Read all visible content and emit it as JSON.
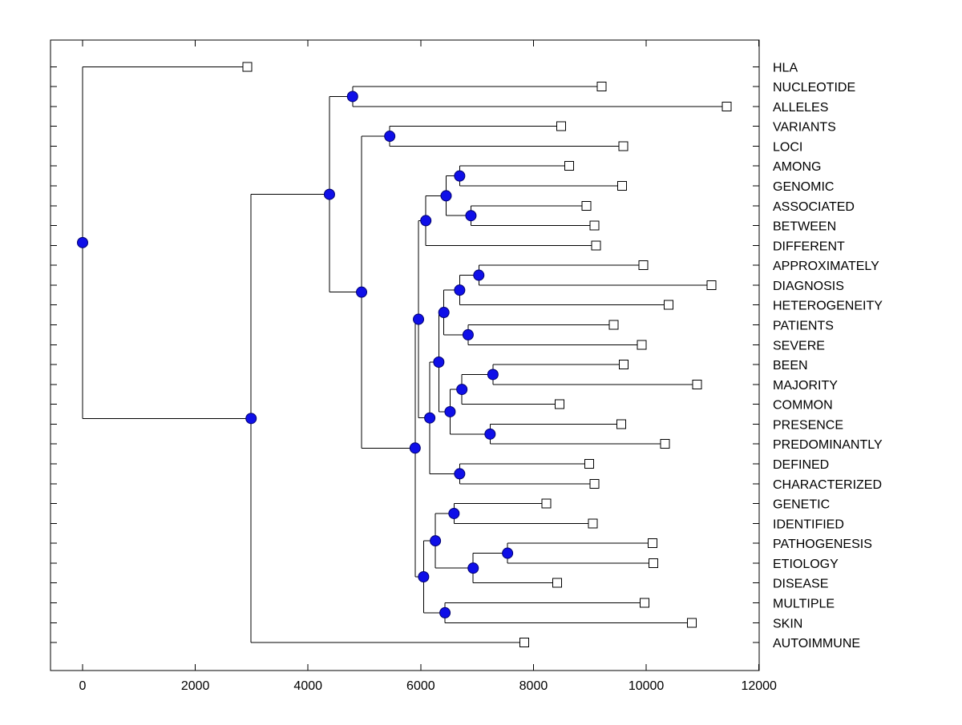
{
  "figure": {
    "background": "#ffffff",
    "kind": "dendrogram-plot"
  },
  "styles": {
    "line_color": "#000000",
    "node_fill": "#0f0fe8",
    "node_edge": "#000070",
    "leaf_marker_fill": "#ffffff",
    "leaf_marker_edge": "#000000",
    "text_color": "#000000"
  },
  "chart_data": {
    "type": "dendrogram",
    "orientation": "horizontal",
    "grid": false,
    "legend": null,
    "title": "",
    "xlabel": "",
    "ylabel": "",
    "x_range": [
      0,
      12000
    ],
    "x_ticks": [
      "0",
      "2000",
      "4000",
      "6000",
      "8000",
      "10000",
      "12000"
    ],
    "x_tick_values": [
      0,
      2000,
      4000,
      6000,
      8000,
      10000,
      12000
    ],
    "leaf_order": [
      {
        "label": "HLA",
        "value": 2920
      },
      {
        "label": "NUCLEOTIDE",
        "value": 9210
      },
      {
        "label": "ALLELES",
        "value": 11430
      },
      {
        "label": "VARIANTS",
        "value": 8490
      },
      {
        "label": "LOCI",
        "value": 9590
      },
      {
        "label": "AMONG",
        "value": 8630
      },
      {
        "label": "GENOMIC",
        "value": 9570
      },
      {
        "label": "ASSOCIATED",
        "value": 8940
      },
      {
        "label": "BETWEEN",
        "value": 9080
      },
      {
        "label": "DIFFERENT",
        "value": 9110
      },
      {
        "label": "APPROXIMATELY",
        "value": 9950
      },
      {
        "label": "DIAGNOSIS",
        "value": 11160
      },
      {
        "label": "HETEROGENEITY",
        "value": 10400
      },
      {
        "label": "PATIENTS",
        "value": 9420
      },
      {
        "label": "SEVERE",
        "value": 9920
      },
      {
        "label": "BEEN",
        "value": 9600
      },
      {
        "label": "MAJORITY",
        "value": 10900
      },
      {
        "label": "COMMON",
        "value": 8460
      },
      {
        "label": "PRESENCE",
        "value": 9560
      },
      {
        "label": "PREDOMINANTLY",
        "value": 10330
      },
      {
        "label": "DEFINED",
        "value": 8990
      },
      {
        "label": "CHARACTERIZED",
        "value": 9080
      },
      {
        "label": "GENETIC",
        "value": 8230
      },
      {
        "label": "IDENTIFIED",
        "value": 9050
      },
      {
        "label": "PATHOGENESIS",
        "value": 10110
      },
      {
        "label": "ETIOLOGY",
        "value": 10130
      },
      {
        "label": "DISEASE",
        "value": 8420
      },
      {
        "label": "MULTIPLE",
        "value": 9970
      },
      {
        "label": "SKIN",
        "value": 10810
      },
      {
        "label": "AUTOIMMUNE",
        "value": 7840
      }
    ],
    "tree": {
      "join": 0,
      "children": [
        {
          "label": "HLA",
          "len": 2920
        },
        {
          "join": 2990,
          "children": [
            {
              "join": 4380,
              "children": [
                {
                  "join": 4790,
                  "children": [
                    {
                      "label": "NUCLEOTIDE",
                      "len": 9210
                    },
                    {
                      "label": "ALLELES",
                      "len": 11430
                    }
                  ]
                },
                {
                  "join": 4950,
                  "children": [
                    {
                      "join": 5450,
                      "children": [
                        {
                          "label": "VARIANTS",
                          "len": 8490
                        },
                        {
                          "label": "LOCI",
                          "len": 9590
                        }
                      ]
                    },
                    {
                      "join": 5900,
                      "children": [
                        {
                          "join": 5960,
                          "children": [
                            {
                              "join": 6090,
                              "children": [
                                {
                                  "join": 6450,
                                  "children": [
                                    {
                                      "join": 6690,
                                      "children": [
                                        {
                                          "label": "AMONG",
                                          "len": 8630
                                        },
                                        {
                                          "label": "GENOMIC",
                                          "len": 9570
                                        }
                                      ]
                                    },
                                    {
                                      "join": 6890,
                                      "children": [
                                        {
                                          "label": "ASSOCIATED",
                                          "len": 8940
                                        },
                                        {
                                          "label": "BETWEEN",
                                          "len": 9080
                                        }
                                      ]
                                    }
                                  ]
                                },
                                {
                                  "label": "DIFFERENT",
                                  "len": 9110
                                }
                              ]
                            },
                            {
                              "join": 6160,
                              "children": [
                                {
                                  "join": 6320,
                                  "children": [
                                    {
                                      "join": 6410,
                                      "children": [
                                        {
                                          "join": 6690,
                                          "children": [
                                            {
                                              "join": 7030,
                                              "children": [
                                                {
                                                  "label": "APPROXIMATELY",
                                                  "len": 9950
                                                },
                                                {
                                                  "label": "DIAGNOSIS",
                                                  "len": 11160
                                                }
                                              ]
                                            },
                                            {
                                              "label": "HETEROGENEITY",
                                              "len": 10400
                                            }
                                          ]
                                        },
                                        {
                                          "join": 6840,
                                          "children": [
                                            {
                                              "label": "PATIENTS",
                                              "len": 9420
                                            },
                                            {
                                              "label": "SEVERE",
                                              "len": 9920
                                            }
                                          ]
                                        }
                                      ]
                                    },
                                    {
                                      "join": 6520,
                                      "children": [
                                        {
                                          "join": 6730,
                                          "children": [
                                            {
                                              "join": 7280,
                                              "children": [
                                                {
                                                  "label": "BEEN",
                                                  "len": 9600
                                                },
                                                {
                                                  "label": "MAJORITY",
                                                  "len": 10900
                                                }
                                              ]
                                            },
                                            {
                                              "label": "COMMON",
                                              "len": 8460
                                            }
                                          ]
                                        },
                                        {
                                          "join": 7230,
                                          "children": [
                                            {
                                              "label": "PRESENCE",
                                              "len": 9560
                                            },
                                            {
                                              "label": "PREDOMINANTLY",
                                              "len": 10330
                                            }
                                          ]
                                        }
                                      ]
                                    }
                                  ]
                                },
                                {
                                  "join": 6690,
                                  "children": [
                                    {
                                      "label": "DEFINED",
                                      "len": 8990
                                    },
                                    {
                                      "label": "CHARACTERIZED",
                                      "len": 9080
                                    }
                                  ]
                                }
                              ]
                            }
                          ]
                        },
                        {
                          "join": 6050,
                          "children": [
                            {
                              "join": 6260,
                              "children": [
                                {
                                  "join": 6590,
                                  "children": [
                                    {
                                      "label": "GENETIC",
                                      "len": 8230
                                    },
                                    {
                                      "label": "IDENTIFIED",
                                      "len": 9050
                                    }
                                  ]
                                },
                                {
                                  "join": 6930,
                                  "children": [
                                    {
                                      "join": 7540,
                                      "children": [
                                        {
                                          "label": "PATHOGENESIS",
                                          "len": 10110
                                        },
                                        {
                                          "label": "ETIOLOGY",
                                          "len": 10130
                                        }
                                      ]
                                    },
                                    {
                                      "label": "DISEASE",
                                      "len": 8420
                                    }
                                  ]
                                }
                              ]
                            },
                            {
                              "join": 6430,
                              "children": [
                                {
                                  "label": "MULTIPLE",
                                  "len": 9970
                                },
                                {
                                  "label": "SKIN",
                                  "len": 10810
                                }
                              ]
                            }
                          ]
                        }
                      ]
                    }
                  ]
                }
              ]
            },
            {
              "label": "AUTOIMMUNE",
              "len": 7840
            }
          ]
        }
      ]
    }
  }
}
